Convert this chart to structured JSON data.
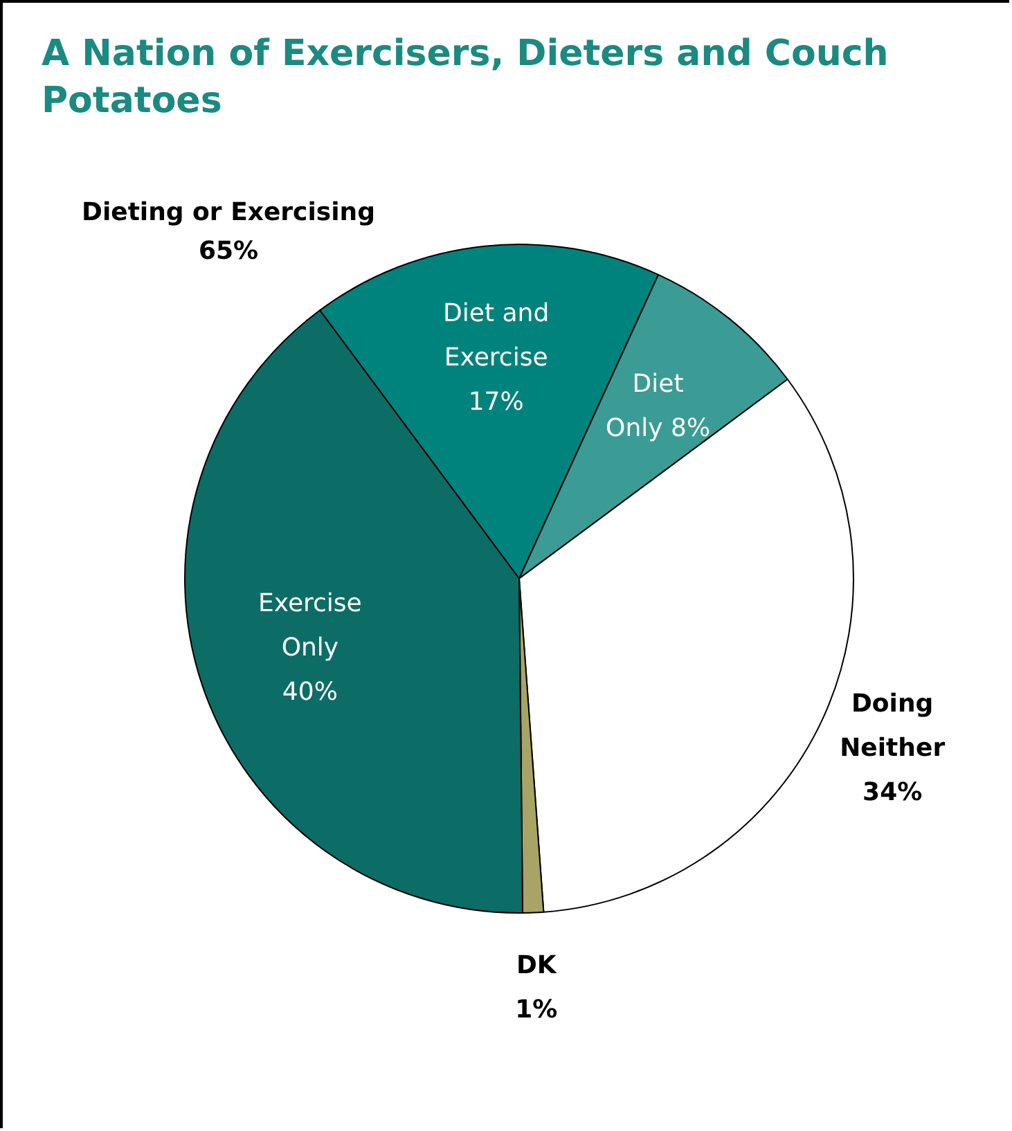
{
  "chart_data": {
    "type": "pie",
    "title": "A Nation of Exercisers, Dieters and Couch Potatoes",
    "categories": [
      "Diet and Exercise",
      "Diet Only",
      "Doing Neither",
      "DK",
      "Exercise Only"
    ],
    "values": [
      17,
      8,
      34,
      1,
      40
    ],
    "colors": [
      "#00837c",
      "#3a9c95",
      "#ffffff",
      "#a8a466",
      "#0b6d66"
    ],
    "value_labels": [
      "17%",
      "8%",
      "34%",
      "1%",
      "40%"
    ],
    "legend": false,
    "annotations": [
      "Dieting or Exercising 65%"
    ]
  }
}
